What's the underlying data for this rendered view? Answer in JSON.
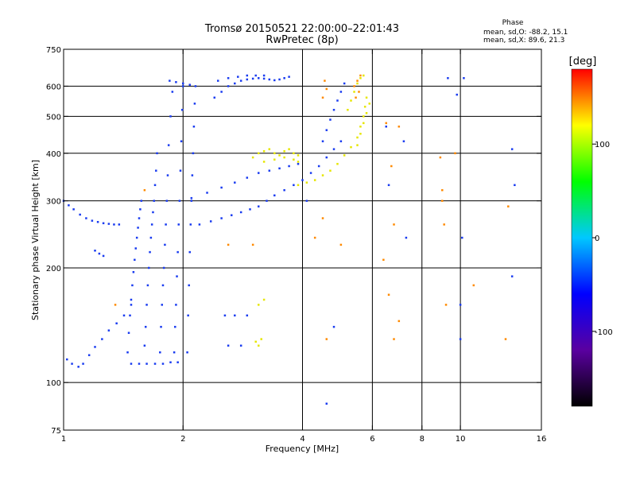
{
  "chart_data": {
    "type": "scatter",
    "title": "Tromsø 20150521 22:00:00–22:01:43",
    "subtitle": "RwPretec (8p)",
    "xlabel": "Frequency [MHz]",
    "ylabel": "Stationary phase Virtual Height [km]",
    "x_scale": "log",
    "y_scale": "log",
    "xlim": [
      1,
      16
    ],
    "ylim": [
      75,
      750
    ],
    "x_ticks": [
      1,
      2,
      4,
      6,
      8,
      10,
      16
    ],
    "y_ticks": [
      75,
      100,
      200,
      300,
      400,
      500,
      600,
      750
    ],
    "x_grid": [
      2,
      4,
      6,
      8,
      10
    ],
    "y_grid": [
      100,
      200,
      300,
      400,
      500,
      600
    ],
    "grid": true,
    "stats": {
      "heading": "Phase",
      "line_o": "mean, sd,O: -88.2, 15.1",
      "line_x": "mean, sd,X:  89.6, 21.3"
    },
    "colorbar": {
      "label": "[deg]",
      "range": [
        -180,
        180
      ],
      "ticks": [
        100,
        0,
        -100
      ],
      "colormap": "rainbow",
      "colors": [
        "#000000",
        "#5a00a0",
        "#0000ff",
        "#00c8ff",
        "#00ff00",
        "#ffff00",
        "#ff0000"
      ]
    },
    "series": [
      {
        "points": [
          [
            1.0,
            300
          ],
          [
            1.03,
            292
          ],
          [
            1.06,
            285
          ],
          [
            1.1,
            276
          ],
          [
            1.14,
            270
          ],
          [
            1.18,
            266
          ],
          [
            1.22,
            264
          ],
          [
            1.26,
            262
          ],
          [
            1.3,
            261
          ],
          [
            1.34,
            260
          ],
          [
            1.38,
            260
          ],
          [
            1.02,
            115
          ],
          [
            1.05,
            112
          ],
          [
            1.09,
            110
          ],
          [
            1.12,
            112
          ],
          [
            1.16,
            118
          ],
          [
            1.2,
            124
          ],
          [
            1.25,
            130
          ],
          [
            1.3,
            137
          ],
          [
            1.36,
            143
          ],
          [
            1.42,
            150
          ],
          [
            1.48,
            160
          ],
          [
            1.48,
            112
          ],
          [
            1.55,
            112
          ],
          [
            1.62,
            112
          ],
          [
            1.7,
            112
          ],
          [
            1.78,
            112
          ],
          [
            1.86,
            113
          ],
          [
            1.94,
            113
          ],
          [
            1.45,
            120
          ],
          [
            1.46,
            135
          ],
          [
            1.47,
            150
          ],
          [
            1.48,
            165
          ],
          [
            1.49,
            180
          ],
          [
            1.5,
            195
          ],
          [
            1.51,
            210
          ],
          [
            1.52,
            225
          ],
          [
            1.53,
            240
          ],
          [
            1.54,
            255
          ],
          [
            1.55,
            270
          ],
          [
            1.56,
            285
          ],
          [
            1.57,
            300
          ],
          [
            1.6,
            125
          ],
          [
            1.61,
            140
          ],
          [
            1.62,
            160
          ],
          [
            1.63,
            180
          ],
          [
            1.64,
            200
          ],
          [
            1.65,
            220
          ],
          [
            1.66,
            240
          ],
          [
            1.67,
            260
          ],
          [
            1.68,
            280
          ],
          [
            1.69,
            300
          ],
          [
            1.7,
            330
          ],
          [
            1.71,
            360
          ],
          [
            1.72,
            400
          ],
          [
            1.75,
            120
          ],
          [
            1.76,
            140
          ],
          [
            1.77,
            160
          ],
          [
            1.78,
            180
          ],
          [
            1.79,
            200
          ],
          [
            1.8,
            230
          ],
          [
            1.81,
            260
          ],
          [
            1.82,
            300
          ],
          [
            1.83,
            350
          ],
          [
            1.84,
            420
          ],
          [
            1.86,
            500
          ],
          [
            1.88,
            580
          ],
          [
            1.9,
            120
          ],
          [
            1.91,
            140
          ],
          [
            1.92,
            160
          ],
          [
            1.93,
            190
          ],
          [
            1.94,
            220
          ],
          [
            1.95,
            260
          ],
          [
            1.96,
            300
          ],
          [
            1.97,
            360
          ],
          [
            1.98,
            430
          ],
          [
            1.99,
            520
          ],
          [
            2.0,
            600
          ],
          [
            2.05,
            120
          ],
          [
            2.06,
            150
          ],
          [
            2.07,
            180
          ],
          [
            2.08,
            220
          ],
          [
            2.09,
            260
          ],
          [
            2.1,
            300
          ],
          [
            2.11,
            350
          ],
          [
            2.12,
            400
          ],
          [
            2.13,
            470
          ],
          [
            2.14,
            540
          ],
          [
            2.15,
            600
          ],
          [
            1.2,
            222
          ],
          [
            1.23,
            218
          ],
          [
            1.26,
            215
          ],
          [
            1.85,
            620
          ],
          [
            1.92,
            615
          ],
          [
            2.0,
            610
          ],
          [
            2.08,
            605
          ],
          [
            2.2,
            260
          ],
          [
            2.35,
            265
          ],
          [
            2.5,
            270
          ],
          [
            2.65,
            275
          ],
          [
            2.8,
            280
          ],
          [
            2.95,
            285
          ],
          [
            3.1,
            290
          ],
          [
            3.25,
            300
          ],
          [
            3.4,
            310
          ],
          [
            3.6,
            320
          ],
          [
            3.8,
            330
          ],
          [
            4.0,
            340
          ],
          [
            4.2,
            355
          ],
          [
            4.4,
            370
          ],
          [
            4.6,
            390
          ],
          [
            4.8,
            410
          ],
          [
            5.0,
            430
          ],
          [
            2.1,
            305
          ],
          [
            2.3,
            315
          ],
          [
            2.5,
            325
          ],
          [
            2.7,
            335
          ],
          [
            2.9,
            345
          ],
          [
            3.1,
            355
          ],
          [
            3.3,
            360
          ],
          [
            3.5,
            365
          ],
          [
            3.7,
            370
          ],
          [
            3.9,
            375
          ],
          [
            2.4,
            560
          ],
          [
            2.5,
            580
          ],
          [
            2.6,
            600
          ],
          [
            2.7,
            610
          ],
          [
            2.8,
            620
          ],
          [
            2.9,
            625
          ],
          [
            3.0,
            628
          ],
          [
            3.1,
            630
          ],
          [
            3.2,
            628
          ],
          [
            3.3,
            625
          ],
          [
            3.4,
            622
          ],
          [
            3.5,
            625
          ],
          [
            3.6,
            630
          ],
          [
            3.7,
            635
          ],
          [
            2.45,
            620
          ],
          [
            2.6,
            630
          ],
          [
            2.75,
            635
          ],
          [
            2.9,
            640
          ],
          [
            3.05,
            640
          ],
          [
            3.2,
            640
          ],
          [
            4.5,
            430
          ],
          [
            4.6,
            460
          ],
          [
            4.7,
            490
          ],
          [
            4.8,
            520
          ],
          [
            4.9,
            550
          ],
          [
            5.0,
            580
          ],
          [
            5.1,
            610
          ],
          [
            2.55,
            150
          ],
          [
            2.7,
            150
          ],
          [
            2.9,
            150
          ],
          [
            2.8,
            125
          ],
          [
            2.6,
            125
          ],
          [
            4.1,
            300
          ],
          [
            4.6,
            88
          ],
          [
            4.8,
            140
          ],
          [
            6.6,
            330
          ],
          [
            7.3,
            240
          ],
          [
            9.3,
            630
          ],
          [
            10.2,
            630
          ],
          [
            9.8,
            570
          ],
          [
            13.5,
            410
          ],
          [
            13.5,
            190
          ],
          [
            13.7,
            330
          ],
          [
            10.1,
            240
          ],
          [
            10.0,
            160
          ],
          [
            10.0,
            130
          ],
          [
            7.2,
            430
          ],
          [
            6.5,
            470
          ]
        ]
      },
      {
        "points": [
          [
            3.0,
            390
          ],
          [
            3.1,
            400
          ],
          [
            3.2,
            405
          ],
          [
            3.3,
            410
          ],
          [
            3.4,
            400
          ],
          [
            3.5,
            395
          ],
          [
            3.6,
            405
          ],
          [
            3.7,
            410
          ],
          [
            3.8,
            400
          ],
          [
            3.9,
            395
          ],
          [
            3.2,
            380
          ],
          [
            3.4,
            385
          ],
          [
            3.6,
            390
          ],
          [
            3.8,
            385
          ],
          [
            3.9,
            380
          ],
          [
            3.9,
            330
          ],
          [
            4.1,
            335
          ],
          [
            4.3,
            340
          ],
          [
            4.5,
            350
          ],
          [
            4.7,
            360
          ],
          [
            4.9,
            375
          ],
          [
            5.1,
            395
          ],
          [
            5.3,
            415
          ],
          [
            5.5,
            440
          ],
          [
            5.6,
            470
          ],
          [
            5.7,
            500
          ],
          [
            5.75,
            530
          ],
          [
            5.8,
            560
          ],
          [
            5.2,
            520
          ],
          [
            5.3,
            550
          ],
          [
            5.4,
            580
          ],
          [
            5.5,
            610
          ],
          [
            5.6,
            630
          ],
          [
            5.7,
            640
          ],
          [
            5.5,
            420
          ],
          [
            5.6,
            450
          ],
          [
            5.7,
            480
          ],
          [
            5.8,
            510
          ],
          [
            5.9,
            540
          ],
          [
            3.1,
            125
          ],
          [
            3.15,
            130
          ],
          [
            3.05,
            128
          ],
          [
            3.1,
            160
          ],
          [
            3.2,
            165
          ]
        ]
      },
      {
        "points": [
          [
            5.4,
            600
          ],
          [
            5.5,
            620
          ],
          [
            5.6,
            640
          ],
          [
            5.45,
            560
          ],
          [
            5.55,
            580
          ],
          [
            4.5,
            560
          ],
          [
            4.6,
            590
          ],
          [
            4.55,
            620
          ],
          [
            6.4,
            210
          ],
          [
            6.6,
            170
          ],
          [
            6.8,
            130
          ],
          [
            7.0,
            145
          ],
          [
            8.9,
            390
          ],
          [
            9.0,
            320
          ],
          [
            9.1,
            260
          ],
          [
            9.7,
            400
          ],
          [
            10.8,
            180
          ],
          [
            13.0,
            130
          ],
          [
            13.2,
            290
          ],
          [
            2.6,
            230
          ],
          [
            3.0,
            230
          ],
          [
            1.6,
            320
          ],
          [
            1.35,
            160
          ],
          [
            4.6,
            130
          ],
          [
            7.0,
            470
          ],
          [
            9.2,
            160
          ],
          [
            6.5,
            480
          ],
          [
            6.7,
            370
          ],
          [
            4.3,
            240
          ],
          [
            5.0,
            230
          ],
          [
            4.5,
            270
          ],
          [
            6.8,
            260
          ],
          [
            9.0,
            300
          ]
        ]
      }
    ]
  }
}
